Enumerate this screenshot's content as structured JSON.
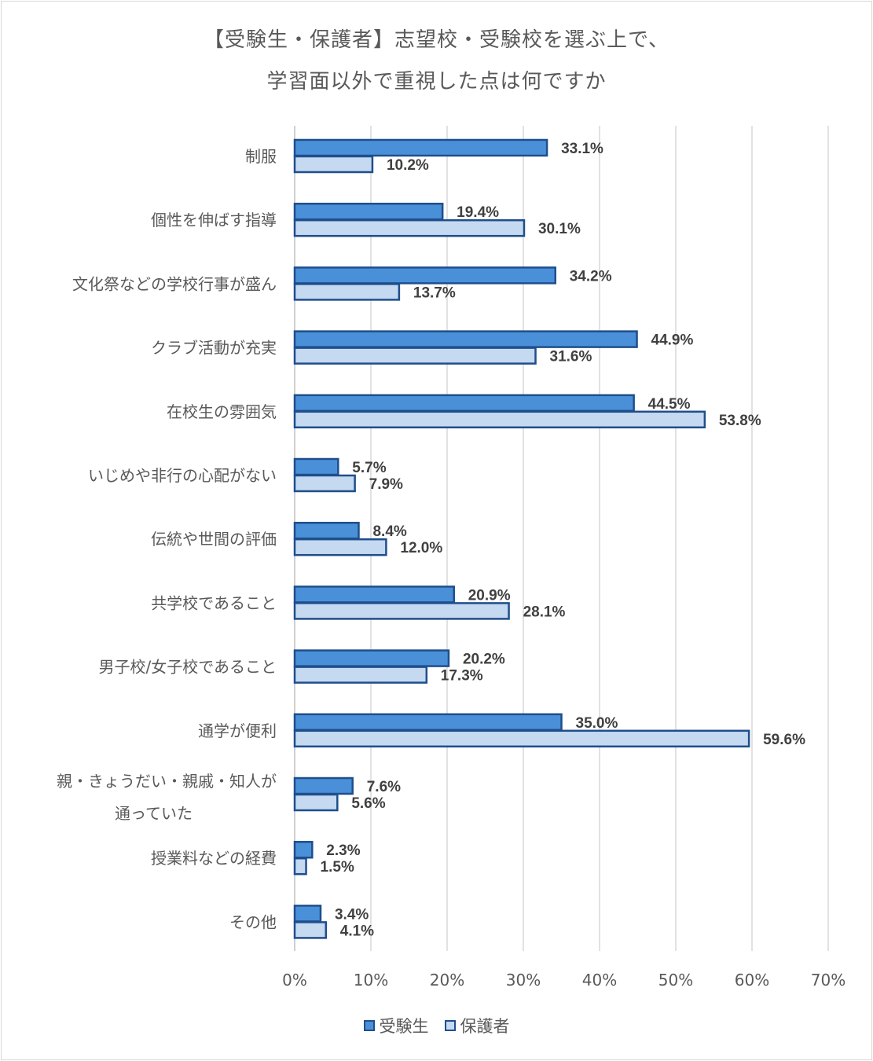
{
  "chart_data": {
    "type": "bar",
    "orientation": "horizontal",
    "title_line1": "【受験生・保護者】志望校・受験校を選ぶ上で、",
    "title_line2": "学習面以外で重視した点は何ですか",
    "categories": [
      [
        "制服"
      ],
      [
        "個性を伸ばす指導"
      ],
      [
        "文化祭などの学校行事が盛ん"
      ],
      [
        "クラブ活動が充実"
      ],
      [
        "在校生の雰囲気"
      ],
      [
        "いじめや非行の心配がない"
      ],
      [
        "伝統や世間の評価"
      ],
      [
        "共学校であること"
      ],
      [
        "男子校/女子校であること"
      ],
      [
        "通学が便利"
      ],
      [
        "親・きょうだい・親戚・知人が",
        "通っていた"
      ],
      [
        "授業料などの経費"
      ],
      [
        "その他"
      ]
    ],
    "series": [
      {
        "name": "受験生",
        "color": "#4a90d9",
        "values": [
          33.1,
          19.4,
          34.2,
          44.9,
          44.5,
          5.7,
          8.4,
          20.9,
          20.2,
          35.0,
          7.6,
          2.3,
          3.4
        ]
      },
      {
        "name": "保護者",
        "color": "#c5d9f1",
        "values": [
          10.2,
          30.1,
          13.7,
          31.6,
          53.8,
          7.9,
          12.0,
          28.1,
          17.3,
          59.6,
          5.6,
          1.5,
          4.1
        ]
      }
    ],
    "xlim": [
      0,
      70
    ],
    "xticks": [
      "0%",
      "10%",
      "20%",
      "30%",
      "40%",
      "50%",
      "60%",
      "70%"
    ],
    "grid": true,
    "legend_position": "bottom",
    "bar_border_color": "#1f4e8c"
  }
}
